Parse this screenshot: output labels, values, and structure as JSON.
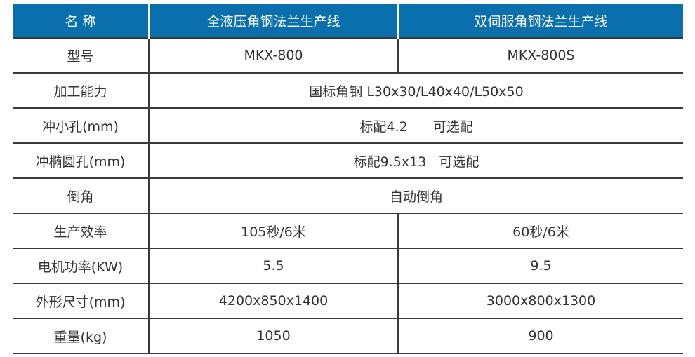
{
  "header": {
    "name": "名 称",
    "col1": "全液压角钢法兰生产线",
    "col2": "双伺服角钢法兰生产线"
  },
  "rows": [
    {
      "label": "型号",
      "v1": "MKX-800",
      "v2": "MKX-800S"
    },
    {
      "label": "加工能力",
      "span": "国标角钢 L30x30/L40x40/L50x50"
    },
    {
      "label": "冲小孔(mm)",
      "span_a": "标配4.2",
      "span_b": "可选配"
    },
    {
      "label": "冲椭圆孔(mm)",
      "span_a": "标配9.5x13",
      "span_b": "可选配"
    },
    {
      "label": "倒角",
      "span": "自动倒角"
    },
    {
      "label": "生产效率",
      "v1": "105秒/6米",
      "v2": "60秒/6米"
    },
    {
      "label": "电机功率(KW)",
      "v1": "5.5",
      "v2": "9.5"
    },
    {
      "label": "外形尺寸(mm)",
      "v1": "4200x850x1400",
      "v2": "3000x800x1300"
    },
    {
      "label": "重量(kg)",
      "v1": "1050",
      "v2": "900"
    }
  ],
  "colors": {
    "header_bg": "#0a6fad",
    "header_text": "#ffffff",
    "border": "#3a3a3a"
  }
}
